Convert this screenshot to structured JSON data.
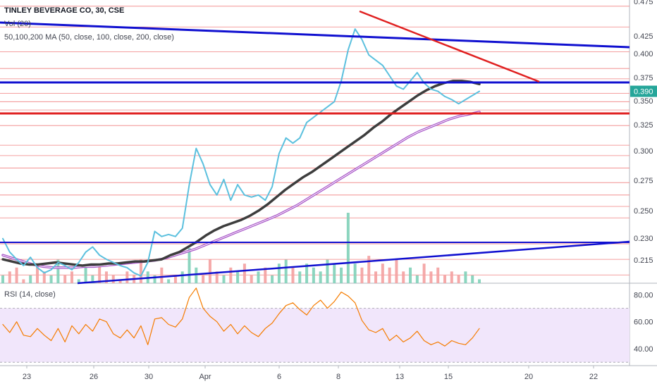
{
  "legend": {
    "title": "TINLEY BEVERAGE CO, 30, CSE",
    "volume": "Vol (20)",
    "ma": "50,100,200 MA (50, close, 100, close, 200, close)",
    "rsi": "RSI (14, close)"
  },
  "colors": {
    "candle_line": "#5bc0de",
    "ma50": "#3d3d3d",
    "ma_slow": "#a855c8",
    "trend_blue": "#1010d0",
    "trend_red": "#e02020",
    "level_line": "#f08080",
    "vol_up": "#7fd0b8",
    "vol_down": "#f4a0a0",
    "rsi_line": "#f57c00",
    "rsi_band": "#f1e6fb",
    "price_badge": "#26a69a"
  },
  "chart_data": [
    {
      "type": "line",
      "name": "price-chart",
      "x_ticks": [
        "23",
        "26",
        "30",
        "Apr",
        "6",
        "8",
        "13",
        "15",
        "20",
        "22"
      ],
      "y_ticks": [
        "0.475",
        "0.425",
        "0.400",
        "0.375",
        "0.350",
        "0.325",
        "0.300",
        "0.275",
        "0.250",
        "0.230",
        "0.215"
      ],
      "ylim": [
        0.205,
        0.478
      ],
      "last_price": "0.390",
      "close": [
        0.248,
        0.235,
        0.228,
        0.222,
        0.23,
        0.22,
        0.215,
        0.218,
        0.225,
        0.222,
        0.218,
        0.225,
        0.235,
        0.24,
        0.232,
        0.228,
        0.225,
        0.222,
        0.22,
        0.215,
        0.212,
        0.225,
        0.255,
        0.25,
        0.252,
        0.25,
        0.258,
        0.3,
        0.335,
        0.32,
        0.3,
        0.29,
        0.305,
        0.285,
        0.3,
        0.29,
        0.288,
        0.29,
        0.285,
        0.298,
        0.33,
        0.345,
        0.34,
        0.345,
        0.36,
        0.365,
        0.37,
        0.375,
        0.38,
        0.4,
        0.43,
        0.45,
        0.44,
        0.425,
        0.42,
        0.415,
        0.405,
        0.395,
        0.392,
        0.4,
        0.408,
        0.398,
        0.392,
        0.39,
        0.385,
        0.382,
        0.378,
        0.382,
        0.386,
        0.39
      ],
      "ma_fast": [
        0.228,
        0.226,
        0.224,
        0.223,
        0.223,
        0.224,
        0.225,
        0.224,
        0.223,
        0.222,
        0.223,
        0.223,
        0.224,
        0.224,
        0.225,
        0.226,
        0.226,
        0.227,
        0.228,
        0.232,
        0.235,
        0.24,
        0.245,
        0.251,
        0.256,
        0.26,
        0.263,
        0.266,
        0.27,
        0.275,
        0.281,
        0.288,
        0.295,
        0.301,
        0.307,
        0.312,
        0.318,
        0.324,
        0.33,
        0.336,
        0.342,
        0.348,
        0.355,
        0.361,
        0.368,
        0.374,
        0.38,
        0.386,
        0.391,
        0.395,
        0.398,
        0.4,
        0.4,
        0.399,
        0.397
      ],
      "ma_slow": [
        0.232,
        0.229,
        0.226,
        0.223,
        0.221,
        0.22,
        0.22,
        0.22,
        0.221,
        0.221,
        0.222,
        0.223,
        0.224,
        0.225,
        0.226,
        0.227,
        0.229,
        0.232,
        0.235,
        0.238,
        0.242,
        0.246,
        0.25,
        0.254,
        0.258,
        0.262,
        0.266,
        0.27,
        0.275,
        0.28,
        0.286,
        0.292,
        0.298,
        0.304,
        0.31,
        0.316,
        0.322,
        0.328,
        0.334,
        0.34,
        0.346,
        0.351,
        0.355,
        0.359,
        0.363,
        0.366,
        0.368,
        0.37
      ],
      "volume": [
        2,
        3,
        4,
        1,
        2,
        5,
        3,
        2,
        6,
        2,
        3,
        1,
        4,
        2,
        5,
        3,
        2,
        1,
        3,
        2,
        6,
        3,
        2,
        4,
        1,
        2,
        3,
        9,
        4,
        2,
        6,
        3,
        2,
        4,
        3,
        5,
        2,
        3,
        4,
        2,
        5,
        6,
        4,
        3,
        5,
        4,
        3,
        6,
        5,
        4,
        18,
        5,
        4,
        7,
        3,
        5,
        4,
        6,
        3,
        4,
        2,
        5,
        3,
        4,
        2,
        3,
        2,
        3,
        2,
        1
      ]
    },
    {
      "type": "line",
      "name": "rsi-chart",
      "y_ticks": [
        "80.00",
        "60.00",
        "40.00"
      ],
      "ylim": [
        28,
        88
      ],
      "band": [
        30,
        70
      ],
      "values": [
        58,
        52,
        60,
        50,
        49,
        55,
        50,
        46,
        55,
        45,
        57,
        51,
        58,
        53,
        62,
        60,
        51,
        48,
        54,
        48,
        57,
        43,
        62,
        63,
        58,
        56,
        62,
        78,
        85,
        70,
        64,
        60,
        53,
        58,
        51,
        57,
        52,
        49,
        55,
        59,
        66,
        72,
        74,
        69,
        65,
        72,
        76,
        70,
        75,
        82,
        79,
        74,
        61,
        54,
        52,
        55,
        46,
        50,
        45,
        48,
        53,
        46,
        43,
        45,
        42,
        46,
        44,
        43,
        48,
        55
      ]
    }
  ]
}
